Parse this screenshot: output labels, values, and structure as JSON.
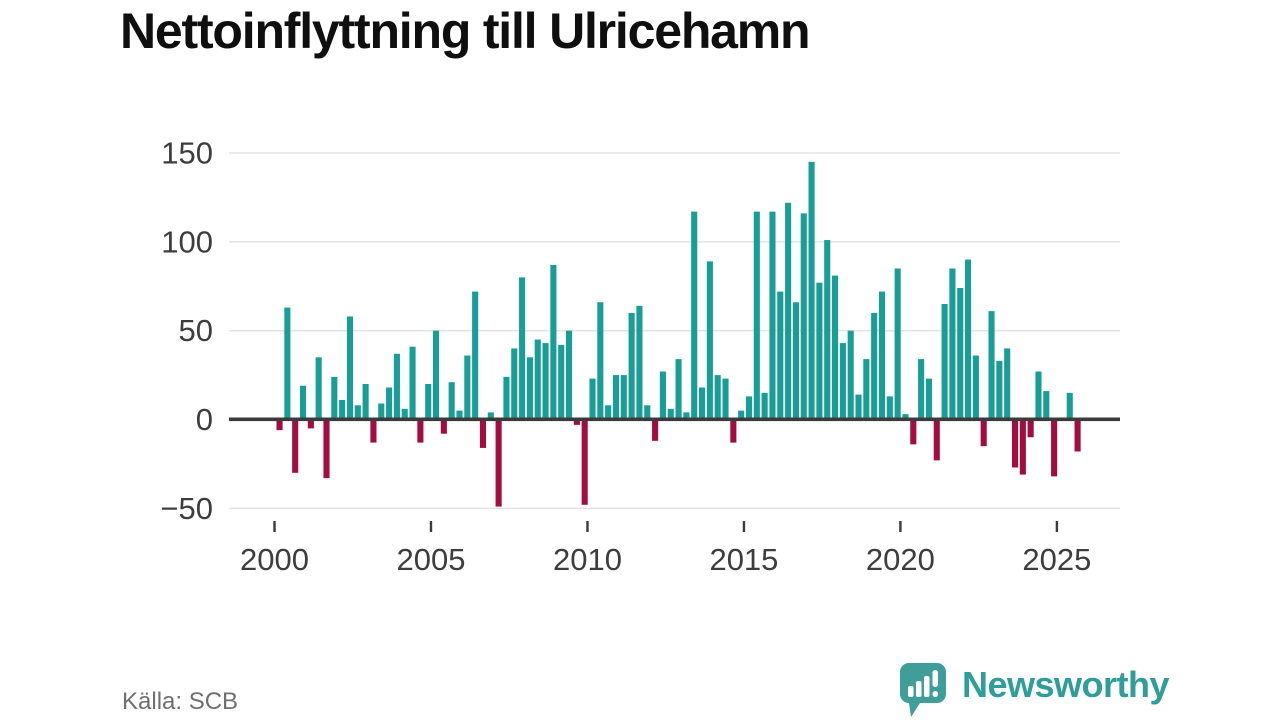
{
  "title": "Nettoinflyttning till Ulricehamn",
  "source": "Källa: SCB",
  "logo": {
    "text": "Newsworthy",
    "icon": "newsworthy-speech-bubble-bar-chart"
  },
  "colors": {
    "positive": "#189e97",
    "negative": "#a30c3e",
    "axis": "#3b3b3b",
    "grid": "#e3e3e3",
    "tick_label": "#3d3d3d",
    "title": "#0f0f0f",
    "source": "#6f6f6f",
    "logo": "#2f9d99",
    "background": "#ffffff"
  },
  "chart_data": {
    "type": "bar",
    "frequency": "quarterly",
    "start_year": 2000,
    "start_quarter": 1,
    "values": [
      -6,
      63,
      -30,
      19,
      -5,
      35,
      -33,
      24,
      11,
      58,
      8,
      20,
      -13,
      9,
      18,
      37,
      6,
      41,
      -13,
      20,
      50,
      -8,
      21,
      5,
      36,
      72,
      -16,
      4,
      -49,
      24,
      40,
      80,
      35,
      45,
      43,
      87,
      42,
      50,
      -3,
      -48,
      23,
      66,
      8,
      25,
      25,
      60,
      64,
      8,
      -12,
      27,
      6,
      34,
      4,
      117,
      18,
      89,
      25,
      23,
      -13,
      5,
      13,
      117,
      15,
      117,
      72,
      122,
      66,
      116,
      145,
      77,
      101,
      81,
      43,
      50,
      14,
      34,
      60,
      72,
      13,
      85,
      3,
      -14,
      34,
      23,
      -23,
      65,
      85,
      74,
      90,
      36,
      -15,
      61,
      33,
      40,
      -27,
      -31,
      -10,
      27,
      16,
      -32,
      0,
      15,
      -18
    ],
    "x_tick_years": [
      2000,
      2005,
      2010,
      2015,
      2020,
      2025
    ],
    "y_ticks": [
      150,
      100,
      50,
      0,
      -50
    ],
    "ylim": [
      -60,
      160
    ],
    "grid": "horizontal",
    "legend": "none",
    "title": "Nettoinflyttning till Ulricehamn"
  }
}
